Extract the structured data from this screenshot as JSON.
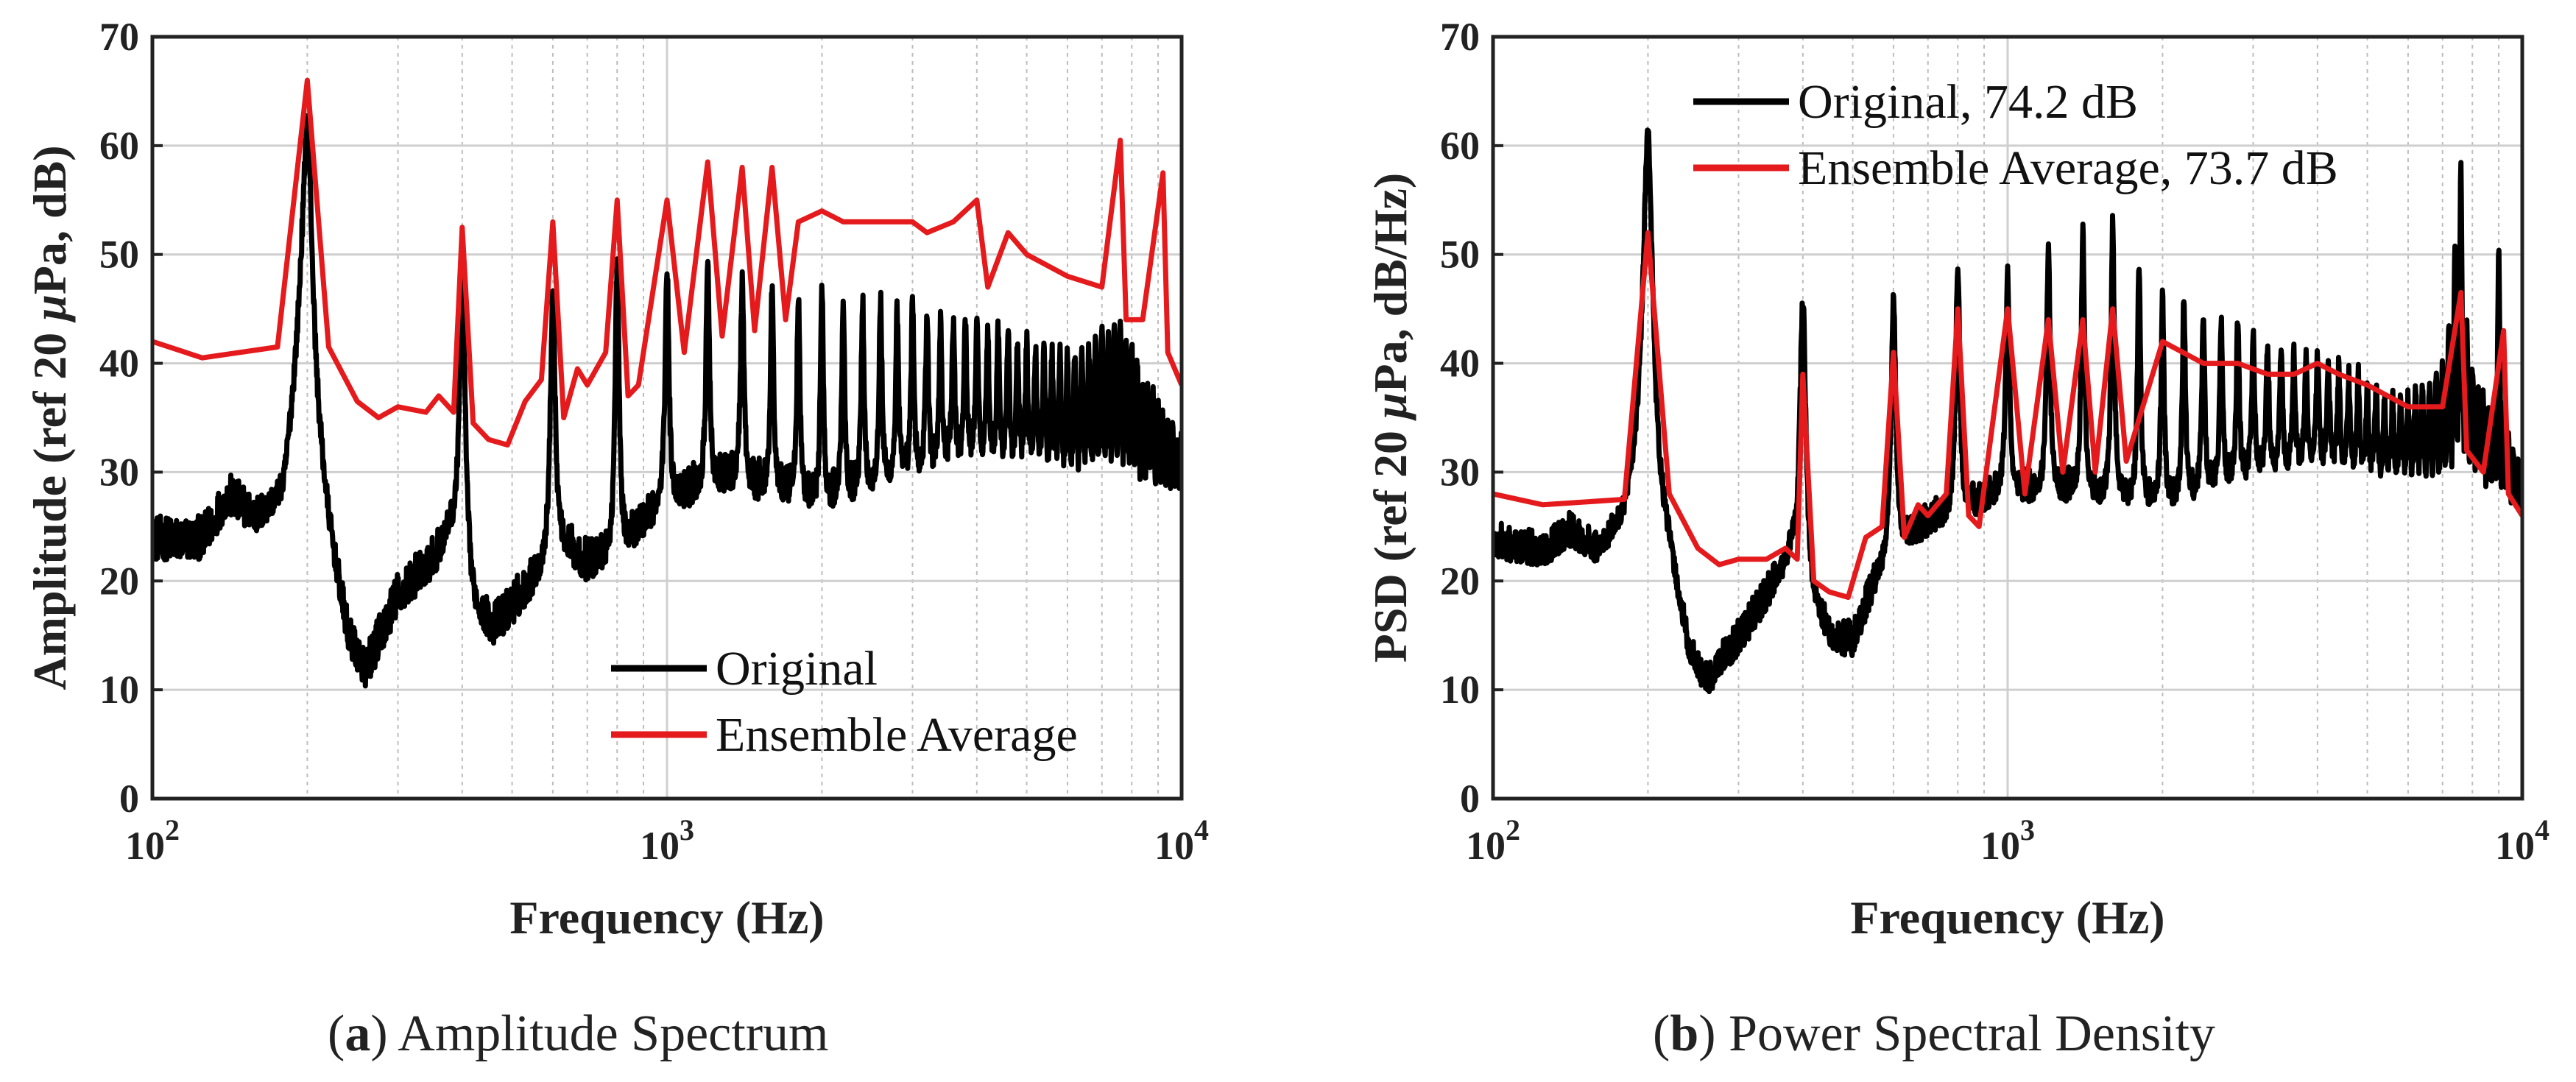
{
  "chart_data": [
    {
      "type": "line",
      "panel_id": "a",
      "xscale": "log",
      "xlim": [
        100,
        10000
      ],
      "ylim": [
        0,
        70
      ],
      "xlabel": "Frequency (Hz)",
      "ylabel_prefix": "Amplitude (ref 20 ",
      "ylabel_mu": "μ",
      "ylabel_suffix": "Pa, dB)",
      "xticks": [
        {
          "value": 100,
          "base": "10",
          "exp": "2"
        },
        {
          "value": 1000,
          "base": "10",
          "exp": "3"
        },
        {
          "value": 10000,
          "base": "10",
          "exp": "4"
        }
      ],
      "yticks": [
        0,
        10,
        20,
        30,
        40,
        50,
        60,
        70
      ],
      "grid": true,
      "legend_position": "bottom-right",
      "harmonic_spacing_hz": 200,
      "series": [
        {
          "name": "Original",
          "legend_label": "Original",
          "color": "#000000",
          "baseline": [
            [
              100,
              23
            ],
            [
              125,
              23
            ],
            [
              140,
              27
            ],
            [
              160,
              25
            ],
            [
              180,
              27
            ],
            [
              195,
              40
            ],
            [
              220,
              24
            ],
            [
              240,
              14
            ],
            [
              260,
              11
            ],
            [
              300,
              18
            ],
            [
              350,
              21
            ],
            [
              380,
              24
            ],
            [
              420,
              17
            ],
            [
              460,
              15
            ],
            [
              500,
              17
            ],
            [
              560,
              20
            ],
            [
              620,
              23
            ],
            [
              700,
              21
            ],
            [
              800,
              22
            ],
            [
              900,
              25
            ],
            [
              1000,
              27
            ],
            [
              1300,
              29
            ],
            [
              2000,
              27
            ],
            [
              3000,
              30
            ],
            [
              4000,
              32
            ],
            [
              6000,
              30
            ],
            [
              8000,
              28
            ],
            [
              10000,
              27
            ]
          ],
          "noise_db": 3,
          "peaks": [
            [
              200,
              62
            ],
            [
              400,
              48
            ],
            [
              600,
              47
            ],
            [
              800,
              49
            ],
            [
              1000,
              49
            ],
            [
              1200,
              49
            ],
            [
              1400,
              48
            ],
            [
              1600,
              47
            ],
            [
              1800,
              46
            ],
            [
              2000,
              47
            ],
            [
              2200,
              46
            ],
            [
              2400,
              46
            ],
            [
              2600,
              46
            ],
            [
              2800,
              45
            ],
            [
              3000,
              46
            ],
            [
              3200,
              45
            ],
            [
              3400,
              44
            ],
            [
              3600,
              44
            ],
            [
              3800,
              44
            ],
            [
              4000,
              44
            ],
            [
              4200,
              43
            ],
            [
              4400,
              43
            ],
            [
              4600,
              43
            ],
            [
              4800,
              42
            ],
            [
              5000,
              42
            ],
            [
              5200,
              42
            ],
            [
              5400,
              41
            ],
            [
              5600,
              41
            ],
            [
              5800,
              41
            ],
            [
              6000,
              41
            ],
            [
              6200,
              41
            ],
            [
              6400,
              41
            ],
            [
              6600,
              41
            ],
            [
              6800,
              42
            ],
            [
              7000,
              43
            ],
            [
              7200,
              43
            ],
            [
              7400,
              44
            ],
            [
              7600,
              44
            ],
            [
              7800,
              43
            ],
            [
              8000,
              42
            ],
            [
              8200,
              40
            ],
            [
              8400,
              39
            ],
            [
              8600,
              38
            ],
            [
              8800,
              37
            ],
            [
              9000,
              36
            ],
            [
              9200,
              35
            ],
            [
              9400,
              34
            ],
            [
              9600,
              34
            ],
            [
              9800,
              33
            ],
            [
              10000,
              33
            ]
          ]
        },
        {
          "name": "Ensemble Average",
          "legend_label": "Ensemble Average",
          "color": "#e41a1c",
          "points": [
            [
              100,
              42
            ],
            [
              125,
              40.5
            ],
            [
              175,
              41.5
            ],
            [
              200,
              66
            ],
            [
              220,
              41.5
            ],
            [
              250,
              36.5
            ],
            [
              275,
              35
            ],
            [
              300,
              36
            ],
            [
              340,
              35.5
            ],
            [
              360,
              37
            ],
            [
              385,
              35.5
            ],
            [
              400,
              52.5
            ],
            [
              420,
              34.5
            ],
            [
              450,
              33
            ],
            [
              490,
              32.5
            ],
            [
              530,
              36.5
            ],
            [
              570,
              38.5
            ],
            [
              600,
              53
            ],
            [
              630,
              35
            ],
            [
              670,
              39.5
            ],
            [
              700,
              38
            ],
            [
              760,
              41
            ],
            [
              800,
              55
            ],
            [
              840,
              37
            ],
            [
              880,
              38
            ],
            [
              1000,
              55
            ],
            [
              1080,
              41
            ],
            [
              1200,
              58.5
            ],
            [
              1280,
              42.5
            ],
            [
              1400,
              58
            ],
            [
              1480,
              43
            ],
            [
              1600,
              58
            ],
            [
              1700,
              44
            ],
            [
              1800,
              53
            ],
            [
              2000,
              54
            ],
            [
              2200,
              53
            ],
            [
              2400,
              53
            ],
            [
              2600,
              53
            ],
            [
              2800,
              53
            ],
            [
              3000,
              53
            ],
            [
              3200,
              52
            ],
            [
              3600,
              53
            ],
            [
              4000,
              55
            ],
            [
              4200,
              47
            ],
            [
              4600,
              52
            ],
            [
              5000,
              50
            ],
            [
              6000,
              48
            ],
            [
              7000,
              47
            ],
            [
              7600,
              60.5
            ],
            [
              7800,
              44
            ],
            [
              8400,
              44
            ],
            [
              9200,
              57.5
            ],
            [
              9400,
              41
            ],
            [
              10000,
              38
            ]
          ]
        }
      ]
    },
    {
      "type": "line",
      "panel_id": "b",
      "xscale": "log",
      "xlim": [
        100,
        10000
      ],
      "ylim": [
        0,
        70
      ],
      "xlabel": "Frequency (Hz)",
      "ylabel_prefix": "PSD (ref 20 ",
      "ylabel_mu": "μ",
      "ylabel_suffix": "Pa, dB/Hz)",
      "xticks": [
        {
          "value": 100,
          "base": "10",
          "exp": "2"
        },
        {
          "value": 1000,
          "base": "10",
          "exp": "3"
        },
        {
          "value": 10000,
          "base": "10",
          "exp": "4"
        }
      ],
      "yticks": [
        0,
        10,
        20,
        30,
        40,
        50,
        60,
        70
      ],
      "grid": true,
      "legend_position": "top-left",
      "harmonic_spacing_hz": 200,
      "series": [
        {
          "name": "Original",
          "legend_label": "Original, 74.2 dB",
          "color": "#000000",
          "baseline": [
            [
              100,
              23
            ],
            [
              125,
              22
            ],
            [
              140,
              24
            ],
            [
              160,
              22
            ],
            [
              180,
              25
            ],
            [
              195,
              30
            ],
            [
              220,
              22
            ],
            [
              240,
              13
            ],
            [
              260,
              10
            ],
            [
              300,
              14
            ],
            [
              350,
              19
            ],
            [
              380,
              22
            ],
            [
              420,
              17
            ],
            [
              460,
              14
            ],
            [
              500,
              14
            ],
            [
              560,
              20
            ],
            [
              620,
              23
            ],
            [
              700,
              25
            ],
            [
              800,
              26
            ],
            [
              900,
              27
            ],
            [
              1000,
              28
            ],
            [
              1300,
              28
            ],
            [
              2000,
              27
            ],
            [
              3000,
              30
            ],
            [
              4000,
              31
            ],
            [
              6000,
              29
            ],
            [
              8000,
              28
            ],
            [
              10000,
              25
            ]
          ],
          "noise_db": 2.5,
          "peaks": [
            [
              200,
              61
            ],
            [
              400,
              46
            ],
            [
              600,
              46
            ],
            [
              800,
              49
            ],
            [
              1000,
              48
            ],
            [
              1200,
              51
            ],
            [
              1400,
              52
            ],
            [
              1600,
              53
            ],
            [
              1800,
              49
            ],
            [
              2000,
              46
            ],
            [
              2200,
              46
            ],
            [
              2400,
              45
            ],
            [
              2600,
              44
            ],
            [
              2800,
              44
            ],
            [
              3000,
              43
            ],
            [
              3200,
              42
            ],
            [
              3400,
              42
            ],
            [
              3600,
              41
            ],
            [
              3800,
              41
            ],
            [
              4000,
              41
            ],
            [
              4200,
              40
            ],
            [
              4400,
              40
            ],
            [
              4600,
              39
            ],
            [
              4800,
              39
            ],
            [
              5000,
              38
            ],
            [
              5200,
              38
            ],
            [
              5400,
              37
            ],
            [
              5600,
              37
            ],
            [
              5800,
              37
            ],
            [
              6000,
              37
            ],
            [
              6200,
              38
            ],
            [
              6400,
              38
            ],
            [
              6600,
              38
            ],
            [
              6800,
              39
            ],
            [
              7000,
              40
            ],
            [
              7200,
              44
            ],
            [
              7400,
              50
            ],
            [
              7600,
              58
            ],
            [
              7800,
              44
            ],
            [
              8000,
              40
            ],
            [
              8200,
              38
            ],
            [
              8400,
              37
            ],
            [
              8600,
              36
            ],
            [
              8800,
              36
            ],
            [
              9000,
              50
            ],
            [
              9200,
              36
            ],
            [
              9400,
              33
            ],
            [
              9600,
              32
            ],
            [
              9800,
              31
            ],
            [
              10000,
              30
            ]
          ]
        },
        {
          "name": "Ensemble Average",
          "legend_label": "Ensemble Average, 73.7 dB",
          "color": "#e41a1c",
          "points": [
            [
              100,
              28
            ],
            [
              125,
              27
            ],
            [
              180,
              27.5
            ],
            [
              200,
              52
            ],
            [
              220,
              28
            ],
            [
              250,
              23
            ],
            [
              275,
              21.5
            ],
            [
              300,
              22
            ],
            [
              340,
              22
            ],
            [
              370,
              23
            ],
            [
              390,
              22
            ],
            [
              400,
              39
            ],
            [
              420,
              20
            ],
            [
              450,
              19
            ],
            [
              490,
              18.5
            ],
            [
              530,
              24
            ],
            [
              570,
              25
            ],
            [
              600,
              41
            ],
            [
              630,
              24
            ],
            [
              670,
              27
            ],
            [
              700,
              26
            ],
            [
              760,
              28
            ],
            [
              800,
              45
            ],
            [
              840,
              26
            ],
            [
              880,
              25
            ],
            [
              1000,
              45
            ],
            [
              1080,
              28
            ],
            [
              1200,
              44
            ],
            [
              1280,
              30
            ],
            [
              1400,
              44
            ],
            [
              1480,
              30
            ],
            [
              1600,
              45
            ],
            [
              1700,
              31
            ],
            [
              2000,
              42
            ],
            [
              2400,
              40
            ],
            [
              2800,
              40
            ],
            [
              3200,
              39
            ],
            [
              3600,
              39
            ],
            [
              4000,
              40
            ],
            [
              4400,
              39
            ],
            [
              5000,
              38
            ],
            [
              6000,
              36
            ],
            [
              7000,
              36
            ],
            [
              7600,
              46.5
            ],
            [
              7800,
              32
            ],
            [
              8400,
              30
            ],
            [
              9200,
              43
            ],
            [
              9400,
              28
            ],
            [
              10000,
              26
            ]
          ]
        }
      ]
    }
  ],
  "captions": [
    {
      "id": "a",
      "letter": "a",
      "text": " Amplitude Spectrum"
    },
    {
      "id": "b",
      "letter": "b",
      "text": " Power Spectral Density"
    }
  ],
  "colors": {
    "axis": "#222222",
    "grid_major": "#cfcfcf",
    "grid_minor": "#bdbdbd"
  }
}
